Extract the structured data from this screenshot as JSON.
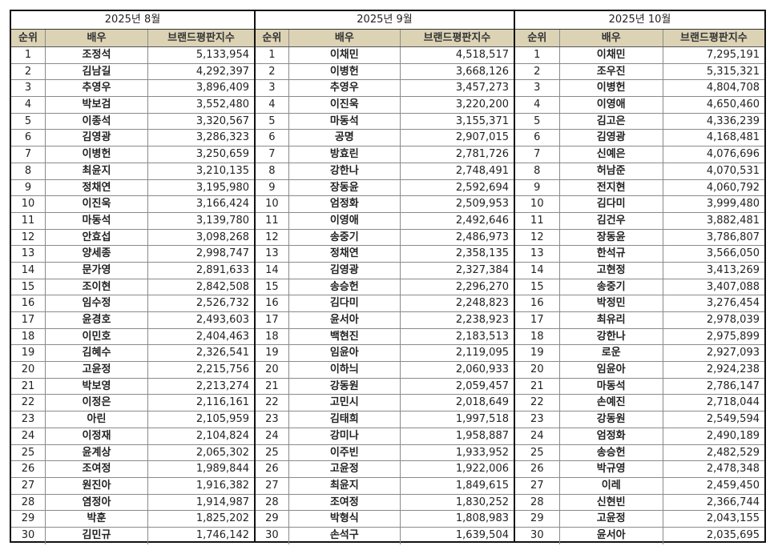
{
  "headers": {
    "rank": "순위",
    "actor": "배우",
    "score": "브랜드평판지수"
  },
  "header_bg_color": "#dcd3b5",
  "months": [
    {
      "title": "2025년 8월",
      "rows": [
        {
          "rank": "1",
          "name": "조정석",
          "score": "5,133,954"
        },
        {
          "rank": "2",
          "name": "김남길",
          "score": "4,292,397"
        },
        {
          "rank": "3",
          "name": "추영우",
          "score": "3,896,409"
        },
        {
          "rank": "4",
          "name": "박보검",
          "score": "3,552,480"
        },
        {
          "rank": "5",
          "name": "이종석",
          "score": "3,320,567"
        },
        {
          "rank": "6",
          "name": "김영광",
          "score": "3,286,323"
        },
        {
          "rank": "7",
          "name": "이병헌",
          "score": "3,250,659"
        },
        {
          "rank": "8",
          "name": "최윤지",
          "score": "3,210,135"
        },
        {
          "rank": "9",
          "name": "정채연",
          "score": "3,195,980"
        },
        {
          "rank": "10",
          "name": "이진욱",
          "score": "3,166,424"
        },
        {
          "rank": "11",
          "name": "마동석",
          "score": "3,139,780"
        },
        {
          "rank": "12",
          "name": "안효섭",
          "score": "3,098,268"
        },
        {
          "rank": "13",
          "name": "양세종",
          "score": "2,998,747"
        },
        {
          "rank": "14",
          "name": "문가영",
          "score": "2,891,633"
        },
        {
          "rank": "15",
          "name": "조이현",
          "score": "2,842,508"
        },
        {
          "rank": "16",
          "name": "임수정",
          "score": "2,526,732"
        },
        {
          "rank": "17",
          "name": "윤경호",
          "score": "2,493,603"
        },
        {
          "rank": "18",
          "name": "이민호",
          "score": "2,404,463"
        },
        {
          "rank": "19",
          "name": "김혜수",
          "score": "2,326,541"
        },
        {
          "rank": "20",
          "name": "고윤정",
          "score": "2,215,756"
        },
        {
          "rank": "21",
          "name": "박보영",
          "score": "2,213,274"
        },
        {
          "rank": "22",
          "name": "이정은",
          "score": "2,116,161"
        },
        {
          "rank": "23",
          "name": "아린",
          "score": "2,105,959"
        },
        {
          "rank": "24",
          "name": "이정재",
          "score": "2,104,824"
        },
        {
          "rank": "25",
          "name": "윤계상",
          "score": "2,065,302"
        },
        {
          "rank": "26",
          "name": "조여정",
          "score": "1,989,844"
        },
        {
          "rank": "27",
          "name": "원진아",
          "score": "1,916,382"
        },
        {
          "rank": "28",
          "name": "염정아",
          "score": "1,914,987"
        },
        {
          "rank": "29",
          "name": "박훈",
          "score": "1,825,202"
        },
        {
          "rank": "30",
          "name": "김민규",
          "score": "1,746,142"
        }
      ]
    },
    {
      "title": "2025년 9월",
      "rows": [
        {
          "rank": "1",
          "name": "이채민",
          "score": "4,518,517"
        },
        {
          "rank": "2",
          "name": "이병헌",
          "score": "3,668,126"
        },
        {
          "rank": "3",
          "name": "추영우",
          "score": "3,457,273"
        },
        {
          "rank": "4",
          "name": "이진욱",
          "score": "3,220,200"
        },
        {
          "rank": "5",
          "name": "마동석",
          "score": "3,155,371"
        },
        {
          "rank": "6",
          "name": "공명",
          "score": "2,907,015"
        },
        {
          "rank": "7",
          "name": "방효린",
          "score": "2,781,726"
        },
        {
          "rank": "8",
          "name": "강한나",
          "score": "2,748,491"
        },
        {
          "rank": "9",
          "name": "장동윤",
          "score": "2,592,694"
        },
        {
          "rank": "10",
          "name": "엄정화",
          "score": "2,509,953"
        },
        {
          "rank": "11",
          "name": "이영애",
          "score": "2,492,646"
        },
        {
          "rank": "12",
          "name": "송중기",
          "score": "2,486,973"
        },
        {
          "rank": "13",
          "name": "정채연",
          "score": "2,358,135"
        },
        {
          "rank": "14",
          "name": "김영광",
          "score": "2,327,384"
        },
        {
          "rank": "15",
          "name": "송승헌",
          "score": "2,296,270"
        },
        {
          "rank": "16",
          "name": "김다미",
          "score": "2,248,823"
        },
        {
          "rank": "17",
          "name": "윤서아",
          "score": "2,238,923"
        },
        {
          "rank": "18",
          "name": "백현진",
          "score": "2,183,513"
        },
        {
          "rank": "19",
          "name": "임윤아",
          "score": "2,119,095"
        },
        {
          "rank": "20",
          "name": "이하늬",
          "score": "2,060,933"
        },
        {
          "rank": "21",
          "name": "강동원",
          "score": "2,059,457"
        },
        {
          "rank": "22",
          "name": "고민시",
          "score": "2,018,649"
        },
        {
          "rank": "23",
          "name": "김태희",
          "score": "1,997,518"
        },
        {
          "rank": "24",
          "name": "강미나",
          "score": "1,958,887"
        },
        {
          "rank": "25",
          "name": "이주빈",
          "score": "1,933,952"
        },
        {
          "rank": "26",
          "name": "고윤정",
          "score": "1,922,006"
        },
        {
          "rank": "27",
          "name": "최윤지",
          "score": "1,849,615"
        },
        {
          "rank": "28",
          "name": "조여정",
          "score": "1,830,252"
        },
        {
          "rank": "29",
          "name": "박형식",
          "score": "1,808,983"
        },
        {
          "rank": "30",
          "name": "손석구",
          "score": "1,639,504"
        }
      ]
    },
    {
      "title": "2025년 10월",
      "rows": [
        {
          "rank": "1",
          "name": "이채민",
          "score": "7,295,191"
        },
        {
          "rank": "2",
          "name": "조우진",
          "score": "5,315,321"
        },
        {
          "rank": "3",
          "name": "이병헌",
          "score": "4,804,708"
        },
        {
          "rank": "4",
          "name": "이영애",
          "score": "4,650,460"
        },
        {
          "rank": "5",
          "name": "김고은",
          "score": "4,336,239"
        },
        {
          "rank": "6",
          "name": "김영광",
          "score": "4,168,481"
        },
        {
          "rank": "7",
          "name": "신예은",
          "score": "4,076,696"
        },
        {
          "rank": "8",
          "name": "허남준",
          "score": "4,070,531"
        },
        {
          "rank": "9",
          "name": "전지현",
          "score": "4,060,792"
        },
        {
          "rank": "10",
          "name": "김다미",
          "score": "3,999,480"
        },
        {
          "rank": "11",
          "name": "김건우",
          "score": "3,882,481"
        },
        {
          "rank": "12",
          "name": "장동윤",
          "score": "3,786,807"
        },
        {
          "rank": "13",
          "name": "한석규",
          "score": "3,566,050"
        },
        {
          "rank": "14",
          "name": "고현정",
          "score": "3,413,269"
        },
        {
          "rank": "15",
          "name": "송중기",
          "score": "3,407,088"
        },
        {
          "rank": "16",
          "name": "박정민",
          "score": "3,276,454"
        },
        {
          "rank": "17",
          "name": "최유리",
          "score": "2,978,039"
        },
        {
          "rank": "18",
          "name": "강한나",
          "score": "2,975,899"
        },
        {
          "rank": "19",
          "name": "로운",
          "score": "2,927,093"
        },
        {
          "rank": "20",
          "name": "임윤아",
          "score": "2,924,238"
        },
        {
          "rank": "21",
          "name": "마동석",
          "score": "2,786,147"
        },
        {
          "rank": "22",
          "name": "손예진",
          "score": "2,718,044"
        },
        {
          "rank": "23",
          "name": "강동원",
          "score": "2,549,594"
        },
        {
          "rank": "24",
          "name": "엄정화",
          "score": "2,490,189"
        },
        {
          "rank": "25",
          "name": "송승헌",
          "score": "2,482,529"
        },
        {
          "rank": "26",
          "name": "박규영",
          "score": "2,478,348"
        },
        {
          "rank": "27",
          "name": "이레",
          "score": "2,459,450"
        },
        {
          "rank": "28",
          "name": "신현빈",
          "score": "2,366,744"
        },
        {
          "rank": "29",
          "name": "고윤정",
          "score": "2,043,155"
        },
        {
          "rank": "30",
          "name": "윤서아",
          "score": "2,035,695"
        }
      ]
    }
  ]
}
